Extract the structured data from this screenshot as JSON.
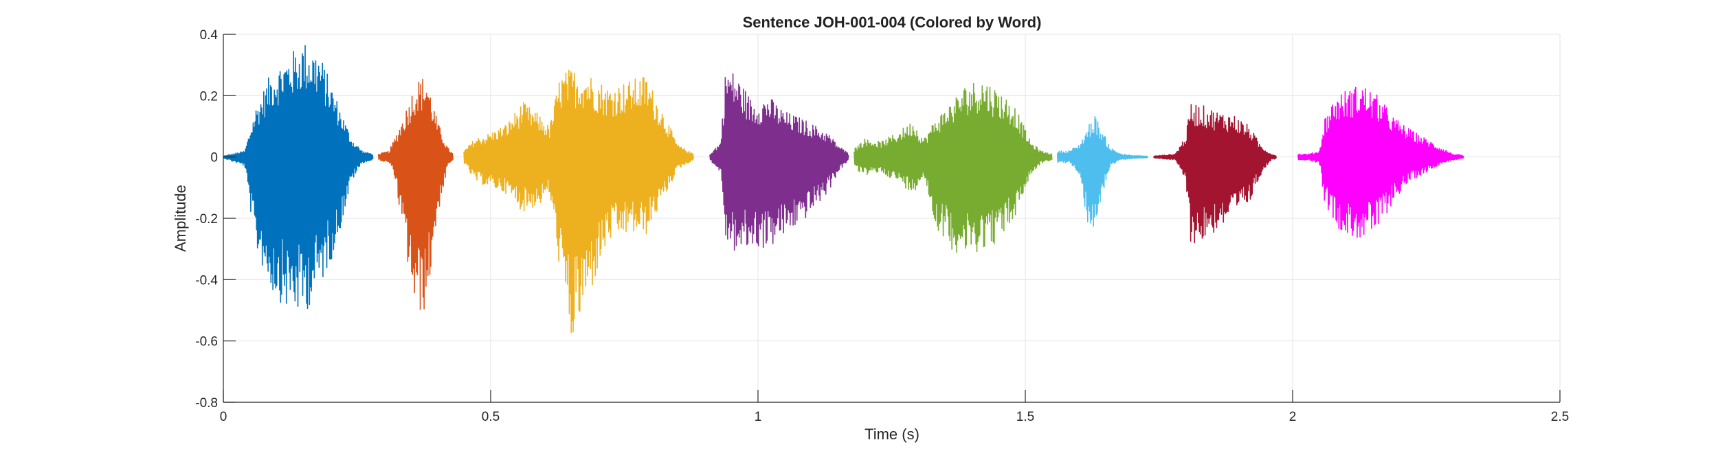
{
  "chart_data": {
    "type": "line",
    "title": "Sentence JOH-001-004 (Colored by Word)",
    "xlabel": "Time (s)",
    "ylabel": "Amplitude",
    "xlim": [
      0,
      2.5
    ],
    "ylim": [
      -0.8,
      0.4
    ],
    "xticks": [
      0,
      0.5,
      1,
      1.5,
      2,
      2.5
    ],
    "xtick_labels": [
      "0",
      "0.5",
      "1",
      "1.5",
      "2",
      "2.5"
    ],
    "yticks": [
      -0.8,
      -0.6,
      -0.4,
      -0.2,
      0,
      0.2,
      0.4
    ],
    "ytick_labels": [
      "-0.8",
      "-0.6",
      "-0.4",
      "-0.2",
      "0",
      "0.2",
      "0.4"
    ],
    "grid": true,
    "legend": "none",
    "segments": [
      {
        "start": 0.0,
        "end": 0.28,
        "color": "#0072BD",
        "env_t": [
          0.0,
          0.04,
          0.06,
          0.09,
          0.12,
          0.15,
          0.18,
          0.21,
          0.24,
          0.26,
          0.28
        ],
        "env_pos": [
          0.003,
          0.02,
          0.16,
          0.28,
          0.33,
          0.38,
          0.34,
          0.2,
          0.06,
          0.02,
          0.01
        ],
        "env_neg": [
          -0.003,
          -0.03,
          -0.3,
          -0.44,
          -0.5,
          -0.52,
          -0.43,
          -0.3,
          -0.08,
          -0.02,
          -0.01
        ]
      },
      {
        "start": 0.29,
        "end": 0.43,
        "color": "#D95319",
        "env_t": [
          0.29,
          0.31,
          0.32,
          0.34,
          0.36,
          0.38,
          0.4,
          0.42,
          0.43
        ],
        "env_pos": [
          0.01,
          0.02,
          0.06,
          0.15,
          0.25,
          0.27,
          0.12,
          0.03,
          0.01
        ],
        "env_neg": [
          -0.01,
          -0.02,
          -0.06,
          -0.3,
          -0.52,
          -0.5,
          -0.2,
          -0.03,
          -0.01
        ]
      },
      {
        "start": 0.45,
        "end": 0.88,
        "color": "#EDB120",
        "env_t": [
          0.45,
          0.47,
          0.5,
          0.53,
          0.56,
          0.59,
          0.61,
          0.63,
          0.65,
          0.68,
          0.72,
          0.76,
          0.79,
          0.82,
          0.85,
          0.88
        ],
        "env_pos": [
          0.02,
          0.06,
          0.08,
          0.11,
          0.18,
          0.14,
          0.1,
          0.27,
          0.29,
          0.28,
          0.23,
          0.25,
          0.27,
          0.16,
          0.04,
          0.01
        ],
        "env_neg": [
          -0.02,
          -0.08,
          -0.1,
          -0.12,
          -0.18,
          -0.16,
          -0.12,
          -0.38,
          -0.62,
          -0.48,
          -0.28,
          -0.25,
          -0.26,
          -0.15,
          -0.04,
          -0.01
        ]
      },
      {
        "start": 0.91,
        "end": 1.17,
        "color": "#7E2F8E",
        "env_t": [
          0.91,
          0.93,
          0.94,
          0.96,
          0.99,
          1.02,
          1.05,
          1.09,
          1.13,
          1.15,
          1.17
        ],
        "env_pos": [
          0.01,
          0.05,
          0.3,
          0.27,
          0.18,
          0.2,
          0.15,
          0.12,
          0.08,
          0.04,
          0.01
        ],
        "env_neg": [
          -0.01,
          -0.05,
          -0.28,
          -0.32,
          -0.3,
          -0.3,
          -0.26,
          -0.2,
          -0.12,
          -0.05,
          -0.01
        ]
      },
      {
        "start": 1.18,
        "end": 1.55,
        "color": "#77AC30",
        "env_t": [
          1.18,
          1.2,
          1.23,
          1.26,
          1.29,
          1.31,
          1.33,
          1.36,
          1.39,
          1.42,
          1.45,
          1.48,
          1.51,
          1.53,
          1.55
        ],
        "env_pos": [
          0.03,
          0.06,
          0.05,
          0.08,
          0.12,
          0.06,
          0.12,
          0.18,
          0.24,
          0.26,
          0.22,
          0.17,
          0.05,
          0.02,
          0.01
        ],
        "env_neg": [
          -0.04,
          -0.06,
          -0.05,
          -0.08,
          -0.12,
          -0.06,
          -0.22,
          -0.3,
          -0.33,
          -0.3,
          -0.28,
          -0.2,
          -0.06,
          -0.02,
          -0.01
        ]
      },
      {
        "start": 1.56,
        "end": 1.73,
        "color": "#4DBEEE",
        "env_t": [
          1.56,
          1.58,
          1.6,
          1.62,
          1.63,
          1.64,
          1.66,
          1.68,
          1.7,
          1.73
        ],
        "env_pos": [
          0.02,
          0.02,
          0.04,
          0.11,
          0.14,
          0.1,
          0.03,
          0.01,
          0.005,
          0.003
        ],
        "env_neg": [
          -0.02,
          -0.02,
          -0.05,
          -0.25,
          -0.26,
          -0.15,
          -0.03,
          -0.01,
          -0.005,
          -0.003
        ]
      },
      {
        "start": 1.74,
        "end": 1.97,
        "color": "#A2142F",
        "env_t": [
          1.74,
          1.78,
          1.8,
          1.81,
          1.83,
          1.86,
          1.89,
          1.92,
          1.94,
          1.96,
          1.97
        ],
        "env_pos": [
          0.003,
          0.01,
          0.07,
          0.18,
          0.17,
          0.15,
          0.14,
          0.1,
          0.04,
          0.01,
          0.005
        ],
        "env_neg": [
          -0.003,
          -0.01,
          -0.08,
          -0.29,
          -0.28,
          -0.24,
          -0.2,
          -0.15,
          -0.06,
          -0.01,
          -0.005
        ]
      },
      {
        "start": 2.01,
        "end": 2.32,
        "color": "#FF00FF",
        "env_t": [
          2.01,
          2.03,
          2.05,
          2.06,
          2.08,
          2.1,
          2.13,
          2.16,
          2.19,
          2.22,
          2.25,
          2.28,
          2.3,
          2.32
        ],
        "env_pos": [
          0.01,
          0.01,
          0.02,
          0.13,
          0.2,
          0.22,
          0.24,
          0.2,
          0.13,
          0.09,
          0.06,
          0.03,
          0.01,
          0.005
        ],
        "env_neg": [
          -0.01,
          -0.01,
          -0.02,
          -0.15,
          -0.22,
          -0.26,
          -0.27,
          -0.24,
          -0.14,
          -0.08,
          -0.05,
          -0.02,
          -0.01,
          -0.005
        ]
      }
    ]
  }
}
